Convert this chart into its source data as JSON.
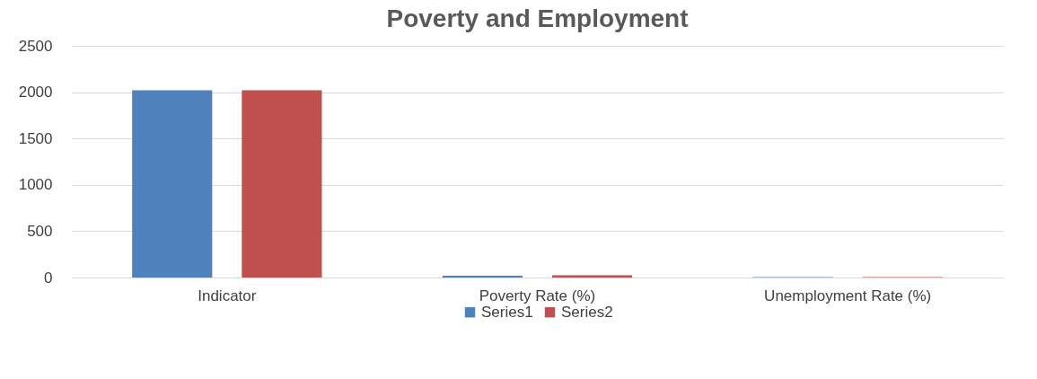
{
  "chart_data": {
    "type": "bar",
    "title": "Poverty and Employment",
    "categories": [
      "Indicator",
      "Poverty Rate (%)",
      "Unemployment Rate (%)"
    ],
    "series": [
      {
        "name": "Series1",
        "color": "#4f81bd",
        "values": [
          2020,
          20,
          5
        ]
      },
      {
        "name": "Series2",
        "color": "#c0504d",
        "values": [
          2020,
          25,
          5
        ]
      }
    ],
    "ylim": [
      0,
      2500
    ],
    "yticks": [
      0,
      500,
      1000,
      1500,
      2000,
      2500
    ],
    "grid": "y",
    "legend": "bottom"
  }
}
